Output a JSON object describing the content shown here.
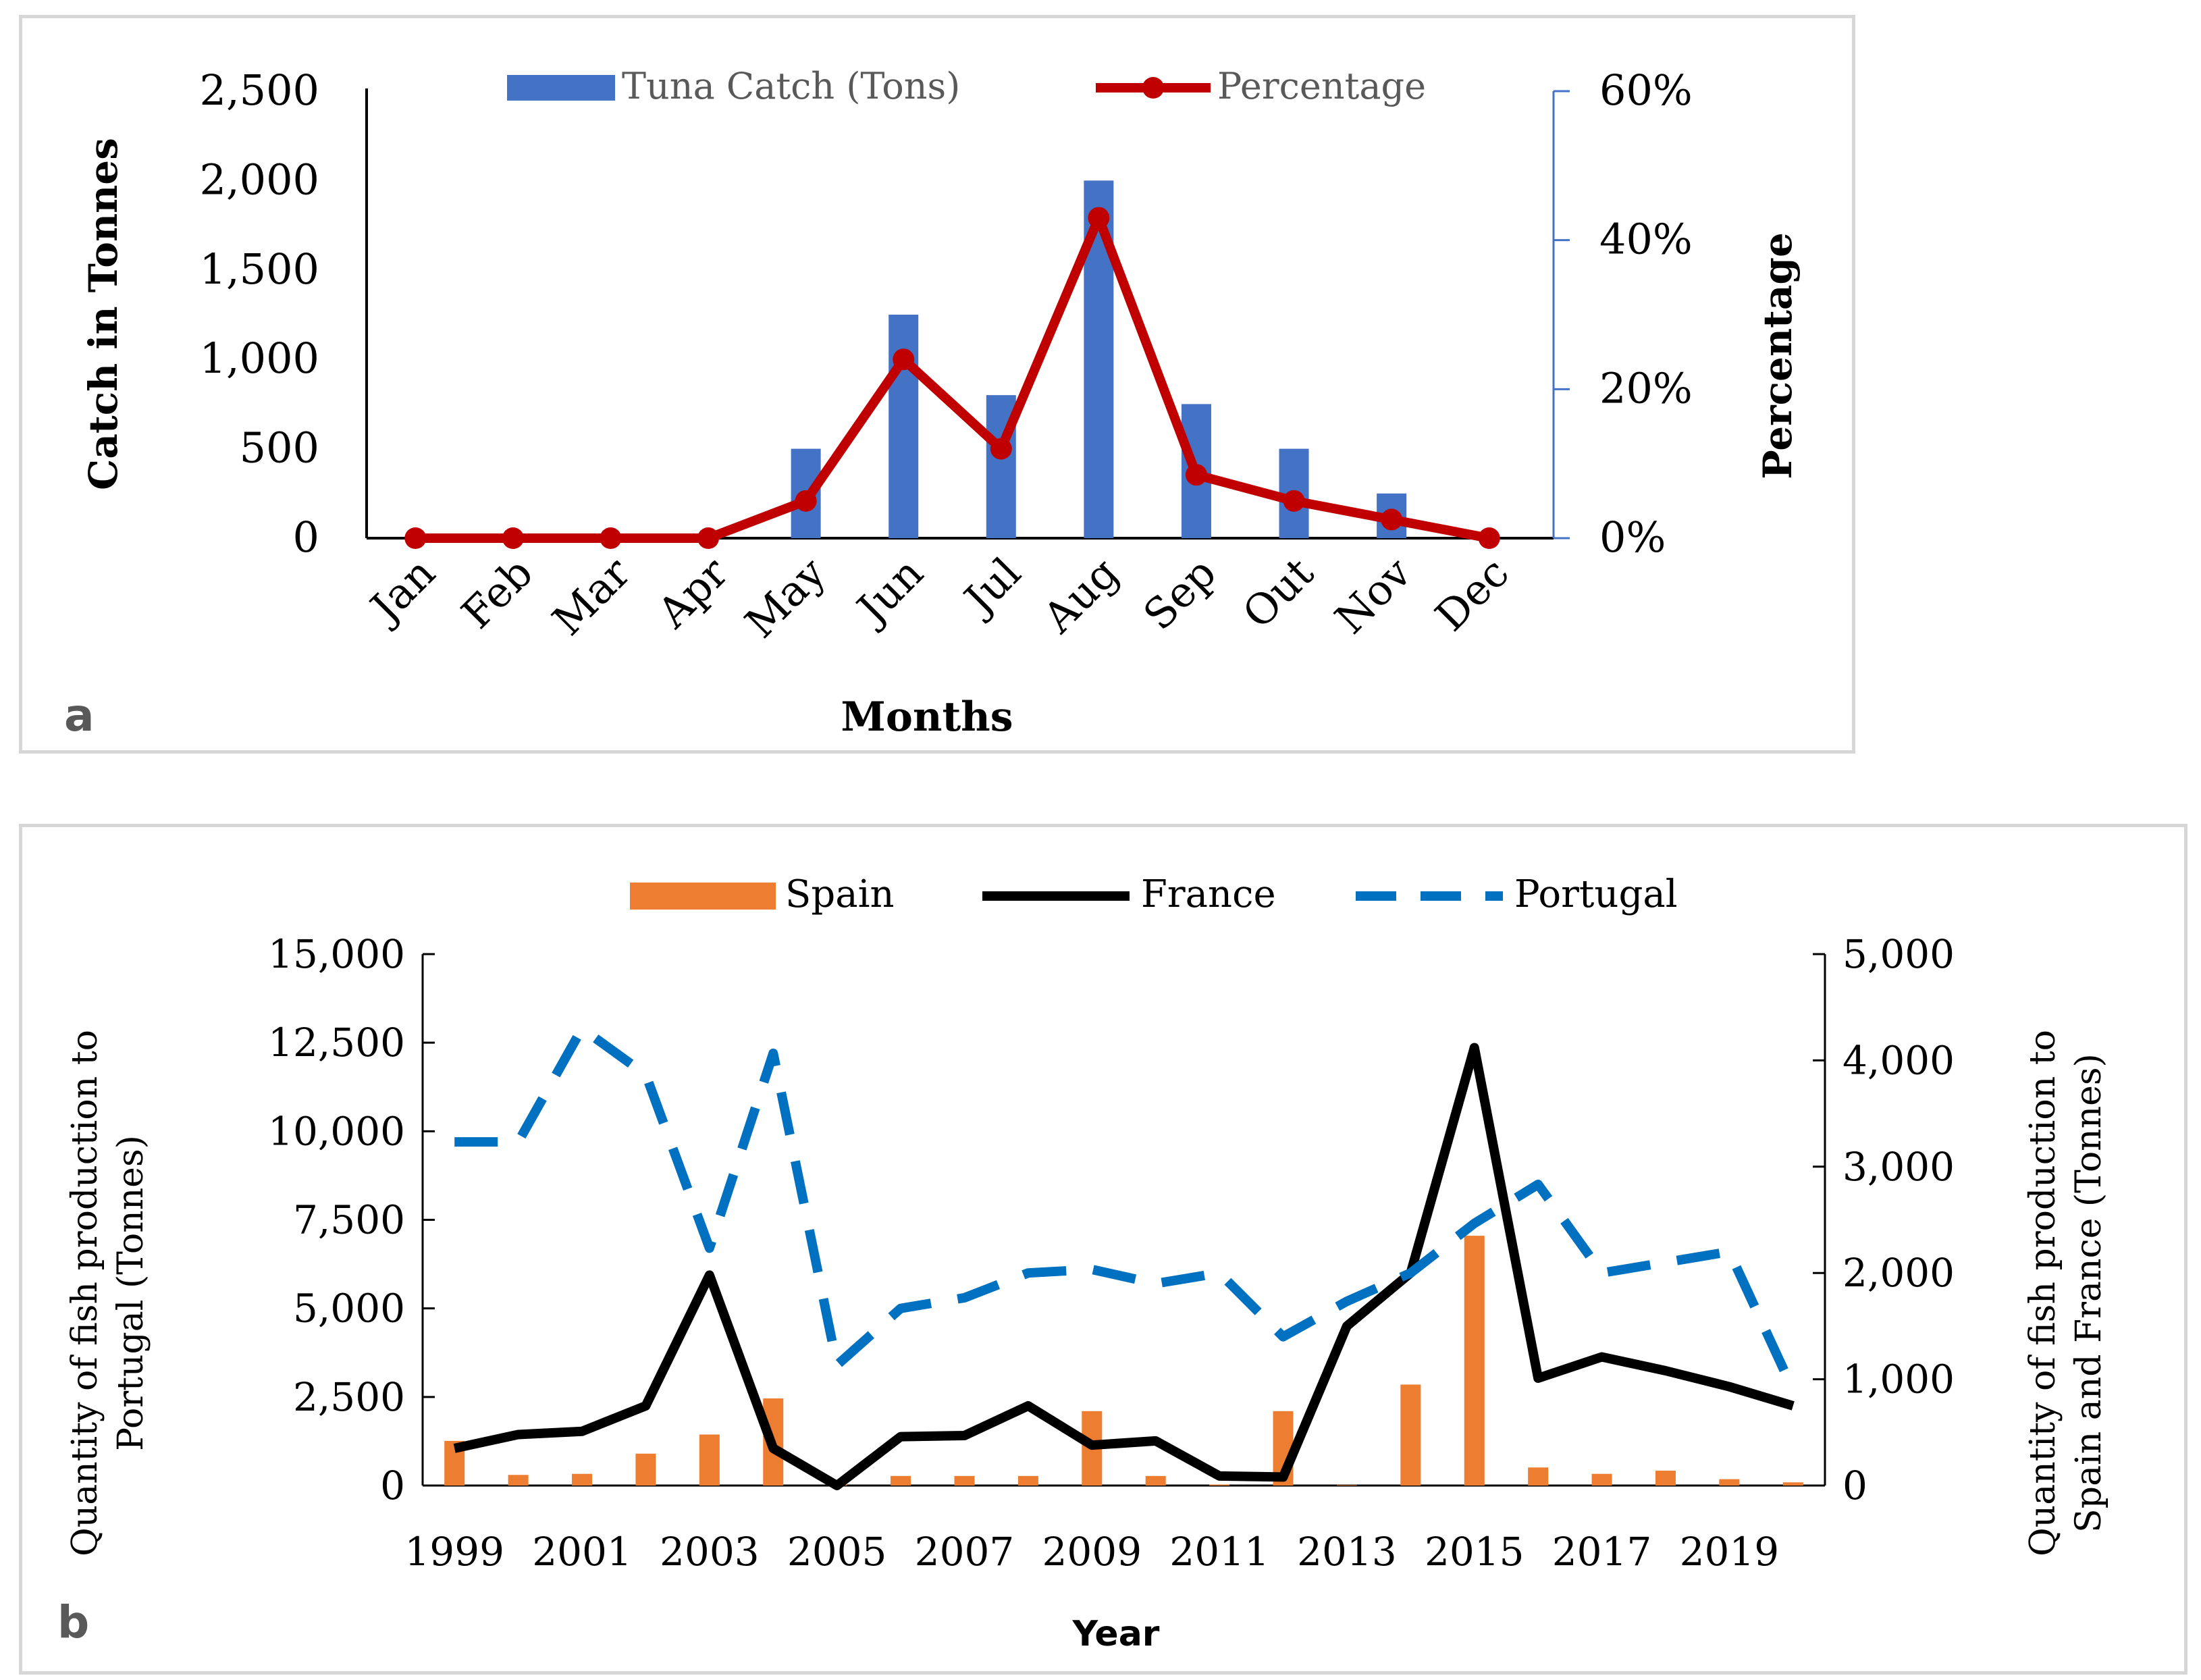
{
  "chart_data": [
    {
      "type": "bar+line",
      "panel_label": "a",
      "title": "",
      "xlabel": "Months",
      "ylabel": "Catch in Tonnes",
      "y2label": "Percentage",
      "categories": [
        "Jan",
        "Feb",
        "Mar",
        "Apr",
        "May",
        "Jun",
        "Jul",
        "Aug",
        "Sep",
        "Out",
        "Nov",
        "Dec"
      ],
      "series": [
        {
          "name": "Tuna Catch (Tons)",
          "kind": "bar",
          "axis": "left",
          "color": "#4472c4",
          "values": [
            0,
            0,
            0,
            0,
            500,
            1250,
            800,
            2000,
            750,
            500,
            250,
            0
          ]
        },
        {
          "name": "Percentage",
          "kind": "line",
          "axis": "right",
          "color": "#c00000",
          "values": [
            0,
            0,
            0,
            0,
            5,
            24,
            12,
            43,
            8.5,
            5,
            2.5,
            0
          ]
        }
      ],
      "ylim": [
        0,
        2500
      ],
      "yticks": [
        0,
        500,
        1000,
        1500,
        2000,
        2500
      ],
      "ytick_labels": [
        "0",
        "500",
        "1,000",
        "1,500",
        "2,000",
        "2,500"
      ],
      "y2lim": [
        0,
        60
      ],
      "y2ticks": [
        0,
        20,
        40,
        60
      ],
      "y2tick_labels": [
        "0%",
        "20%",
        "40%",
        "60%"
      ],
      "legend_position": "top-center"
    },
    {
      "type": "bar+line",
      "panel_label": "b",
      "title": "",
      "xlabel": "Year",
      "ylabel": "Quantity of fish production to Portugal (Tonnes)",
      "ylabel_lines": [
        "Quantity of fish production to",
        "Portugal (Tonnes)"
      ],
      "y2label": "Quantity of fish production to Spain and France (Tonnes)",
      "y2label_lines": [
        "Quantity of fish production to",
        "Spain and France (Tonnes)"
      ],
      "x": [
        1999,
        2000,
        2001,
        2002,
        2003,
        2004,
        2005,
        2006,
        2007,
        2008,
        2009,
        2010,
        2011,
        2012,
        2013,
        2014,
        2015,
        2016,
        2017,
        2018,
        2019,
        2020
      ],
      "xtick_labels": [
        "1999",
        "2001",
        "2003",
        "2005",
        "2007",
        "2009",
        "2011",
        "2013",
        "2015",
        "2017",
        "2019"
      ],
      "series": [
        {
          "name": "Spain",
          "kind": "bar",
          "axis": "right",
          "color": "#ed7d31",
          "values": [
            420,
            100,
            110,
            300,
            480,
            820,
            10,
            90,
            90,
            90,
            700,
            90,
            10,
            700,
            5,
            950,
            2350,
            170,
            110,
            140,
            60,
            30
          ]
        },
        {
          "name": "France",
          "kind": "line",
          "axis": "right",
          "color": "#000000",
          "values": [
            350,
            480,
            510,
            750,
            1980,
            350,
            0,
            460,
            470,
            750,
            380,
            420,
            90,
            80,
            1500,
            2000,
            4120,
            1010,
            1210,
            1080,
            930,
            750
          ]
        },
        {
          "name": "Portugal",
          "kind": "dashed-line",
          "axis": "left",
          "color": "#0070c0",
          "values": [
            9700,
            9700,
            12900,
            11600,
            6700,
            12200,
            3400,
            5000,
            5300,
            6000,
            6100,
            5700,
            6000,
            4200,
            5200,
            6000,
            7400,
            8500,
            6000,
            6300,
            6600,
            2700
          ]
        }
      ],
      "ylim": [
        0,
        15000
      ],
      "yticks": [
        0,
        2500,
        5000,
        7500,
        10000,
        12500,
        15000
      ],
      "ytick_labels": [
        "0",
        "2,500",
        "5,000",
        "7,500",
        "10,000",
        "12,500",
        "15,000"
      ],
      "y2lim": [
        0,
        5000
      ],
      "y2ticks": [
        0,
        1000,
        2000,
        3000,
        4000,
        5000
      ],
      "y2tick_labels": [
        "0",
        "1,000",
        "2,000",
        "3,000",
        "4,000",
        "5,000"
      ],
      "legend_position": "top-center"
    }
  ]
}
